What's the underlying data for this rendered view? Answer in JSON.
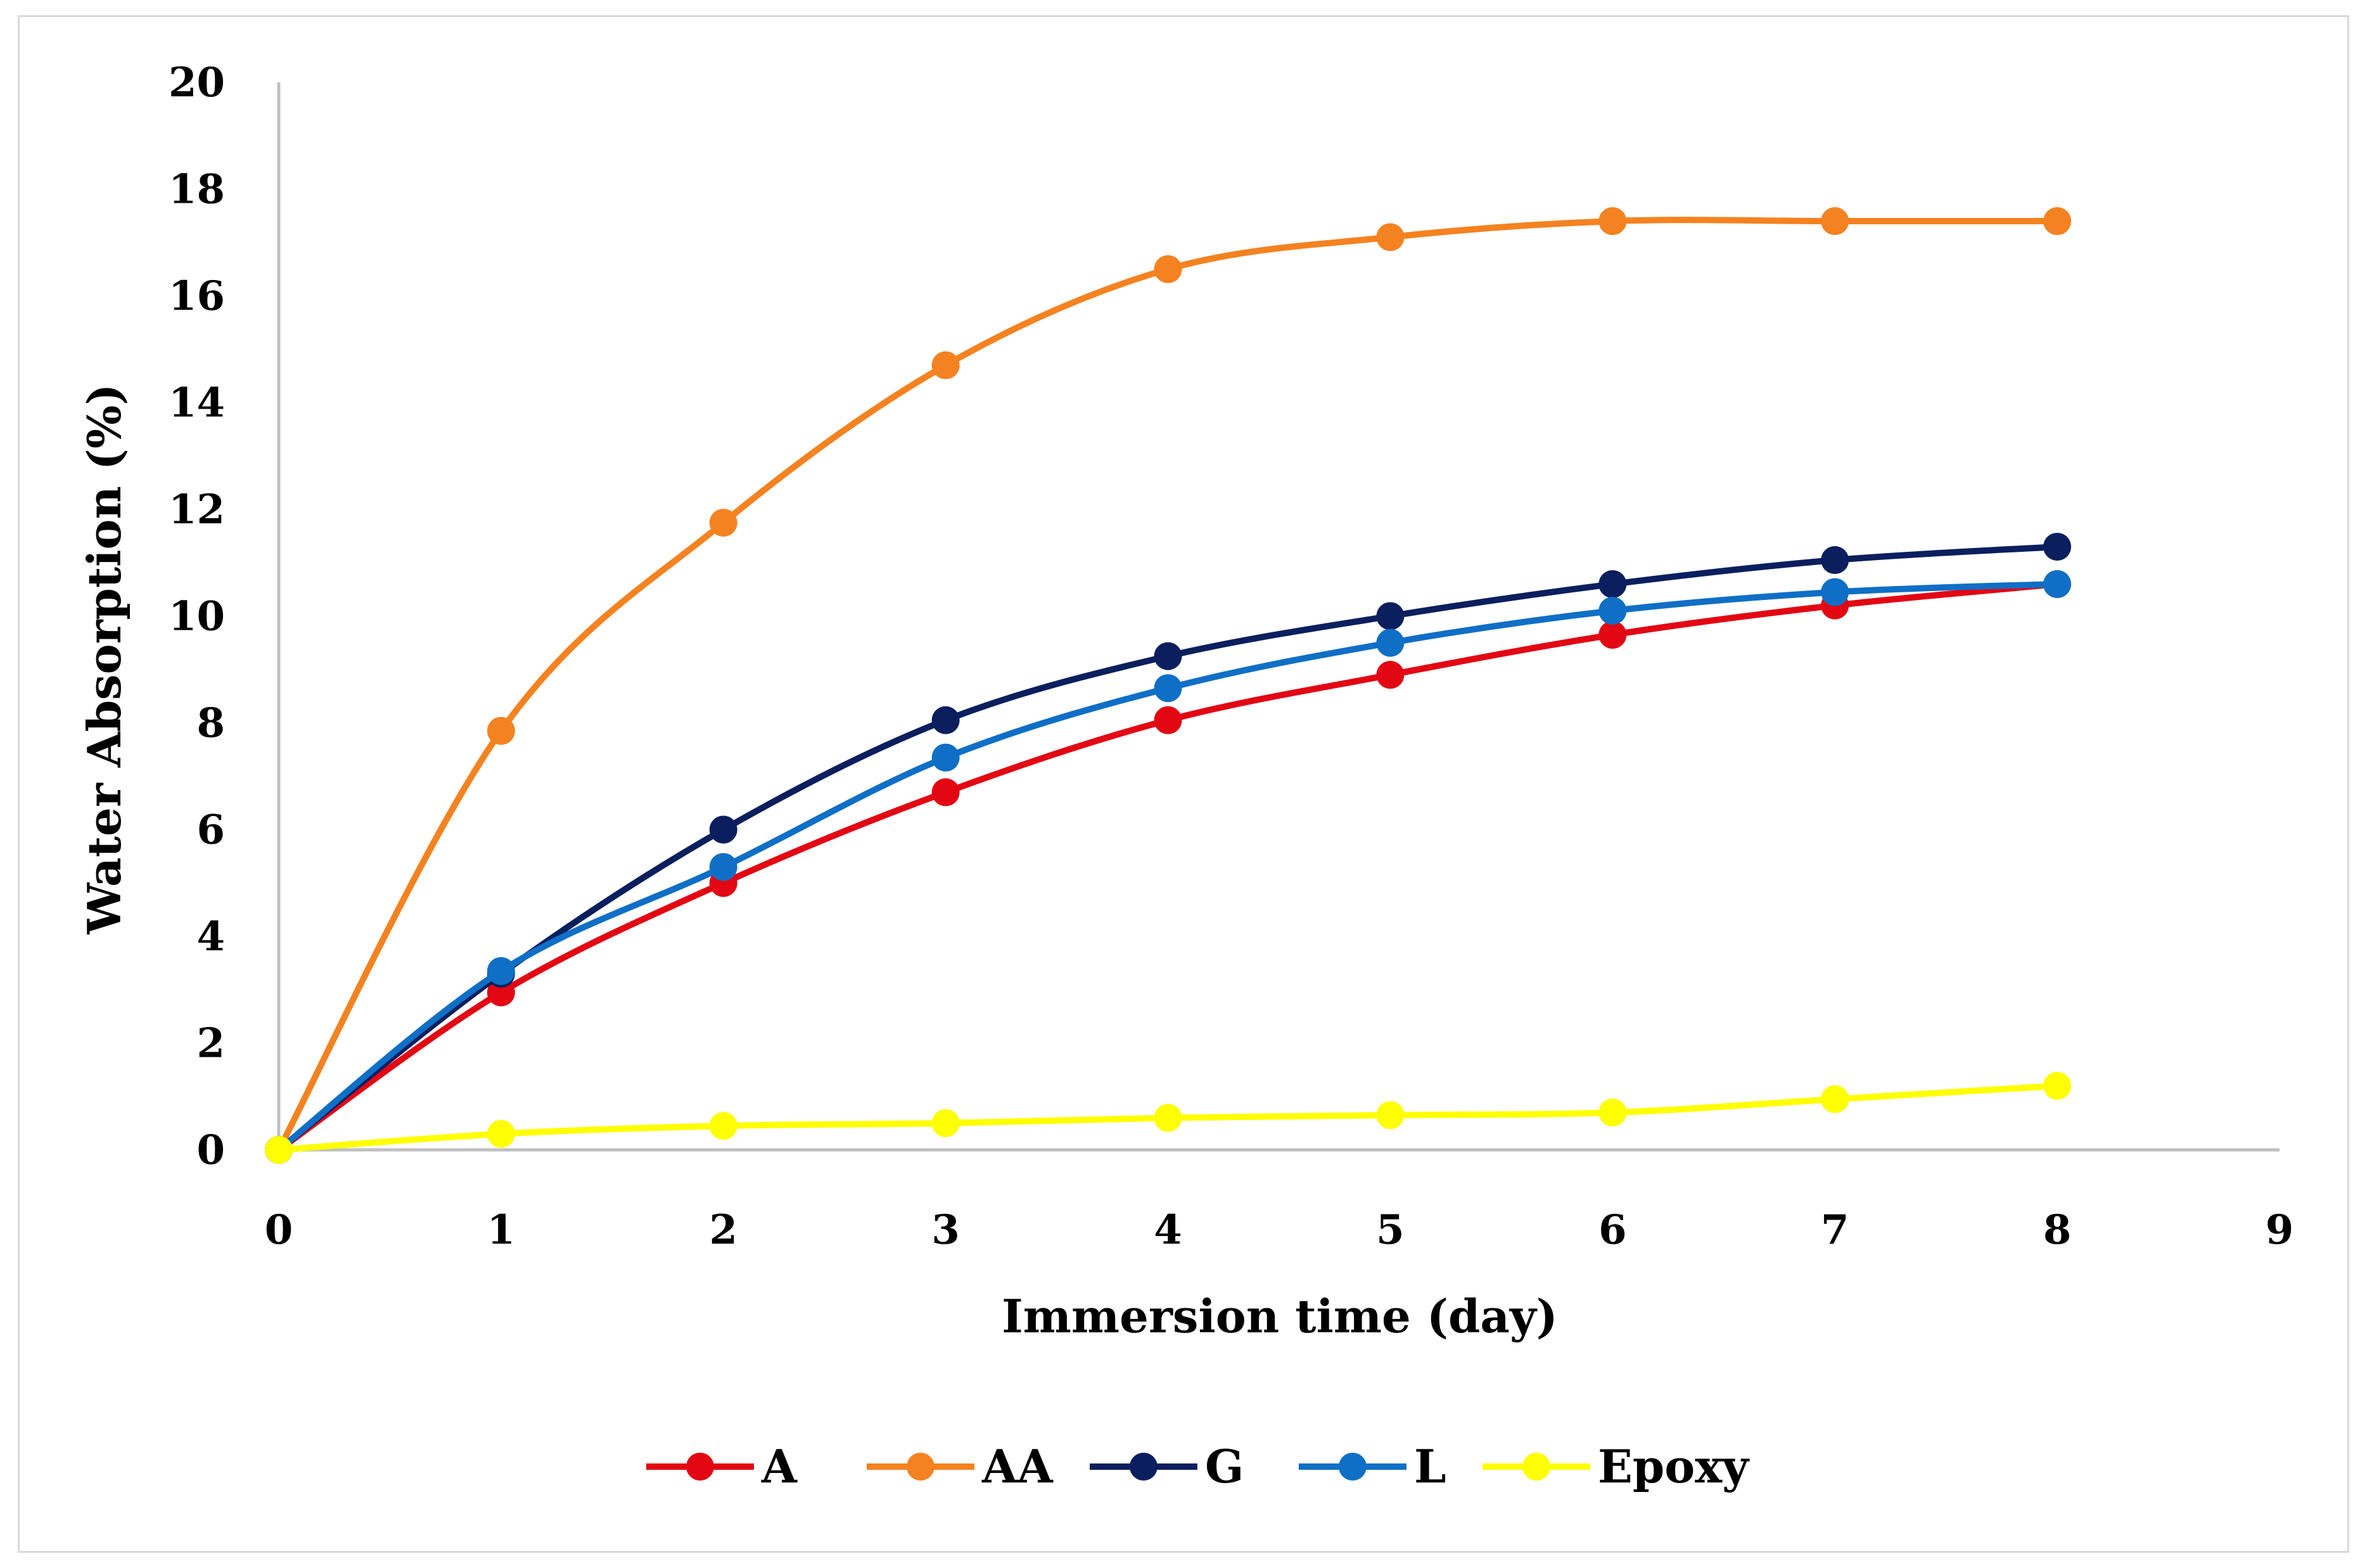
{
  "chart_data": {
    "type": "line",
    "title": "",
    "xlabel": "Immersion time (day)",
    "ylabel": "Water Absorption (%)",
    "xlim": [
      0,
      9
    ],
    "ylim": [
      0,
      20
    ],
    "x_ticks": [
      "0",
      "1",
      "2",
      "3",
      "4",
      "5",
      "6",
      "7",
      "8",
      "9"
    ],
    "y_ticks": [
      "0",
      "2",
      "4",
      "6",
      "8",
      "10",
      "12",
      "14",
      "16",
      "18",
      "20"
    ],
    "grid": false,
    "legend_position": "bottom",
    "x": [
      0,
      1,
      2,
      3,
      4,
      5,
      6,
      7,
      8
    ],
    "series": [
      {
        "name": "A",
        "color": "#e30613",
        "values": [
          0,
          2.95,
          5.0,
          6.7,
          8.05,
          8.9,
          9.65,
          10.2,
          10.6
        ]
      },
      {
        "name": "AA",
        "color": "#f58220",
        "values": [
          0,
          7.85,
          11.75,
          14.7,
          16.5,
          17.1,
          17.4,
          17.4,
          17.4
        ]
      },
      {
        "name": "G",
        "color": "#0b1f5e",
        "values": [
          0,
          3.3,
          6.0,
          8.05,
          9.25,
          10.0,
          10.6,
          11.05,
          11.3
        ]
      },
      {
        "name": "L",
        "color": "#0f6fc6",
        "values": [
          0,
          3.35,
          5.3,
          7.35,
          8.65,
          9.5,
          10.1,
          10.45,
          10.6
        ]
      },
      {
        "name": "Epoxy",
        "color": "#ffff00",
        "values": [
          0,
          0.3,
          0.45,
          0.5,
          0.6,
          0.65,
          0.7,
          0.95,
          1.2
        ]
      }
    ]
  }
}
